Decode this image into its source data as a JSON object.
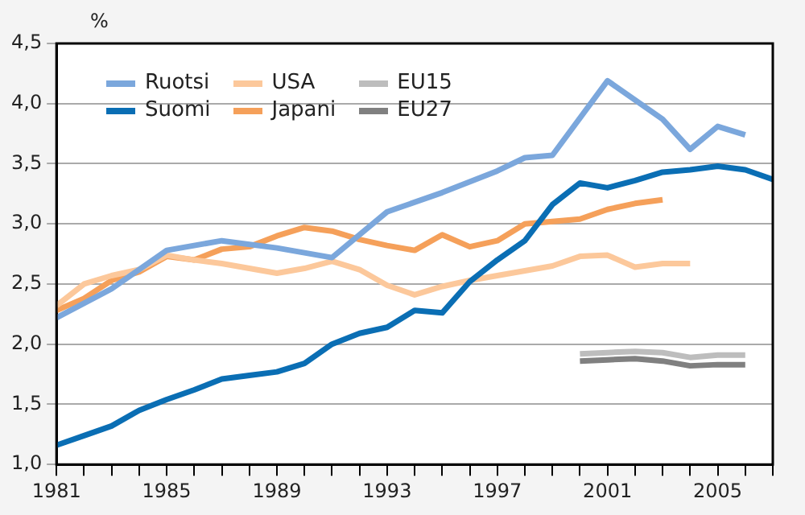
{
  "chart_data": {
    "type": "line",
    "ylabel": "%",
    "xlim": [
      1981,
      2007
    ],
    "xticks": [
      1981,
      {
        "value": 1982,
        "label": null
      },
      {
        "value": 1983,
        "label": null
      },
      {
        "value": 1984,
        "label": null
      },
      1985,
      {
        "value": 1986,
        "label": null
      },
      {
        "value": 1987,
        "label": null
      },
      {
        "value": 1988,
        "label": null
      },
      1989,
      {
        "value": 1990,
        "label": null
      },
      {
        "value": 1991,
        "label": null
      },
      {
        "value": 1992,
        "label": null
      },
      1993,
      {
        "value": 1994,
        "label": null
      },
      {
        "value": 1995,
        "label": null
      },
      {
        "value": 1996,
        "label": null
      },
      1997,
      {
        "value": 1998,
        "label": null
      },
      {
        "value": 1999,
        "label": null
      },
      {
        "value": 2000,
        "label": null
      },
      2001,
      {
        "value": 2002,
        "label": null
      },
      {
        "value": 2003,
        "label": null
      },
      {
        "value": 2004,
        "label": null
      },
      2005,
      {
        "value": 2006,
        "label": null
      },
      {
        "value": 2007,
        "label": null
      }
    ],
    "ylim": [
      1.0,
      4.5
    ],
    "yticks": [
      {
        "value": 1.0,
        "label": "1,0"
      },
      {
        "value": 1.5,
        "label": "1,5"
      },
      {
        "value": 2.0,
        "label": "2,0"
      },
      {
        "value": 2.5,
        "label": "2,5"
      },
      {
        "value": 3.0,
        "label": "3,0"
      },
      {
        "value": 3.5,
        "label": "3,5"
      },
      {
        "value": 4.0,
        "label": "4,0"
      },
      {
        "value": 4.5,
        "label": "4,5"
      }
    ],
    "grid": "y",
    "legend": "top left",
    "marker": "none",
    "line_style": "solid",
    "series": [
      {
        "name": "Ruotsi",
        "color": "#7ba7dc",
        "x": [
          1981,
          1983,
          1985,
          1987,
          1989,
          1991,
          1993,
          1995,
          1997,
          1998,
          1999,
          2001,
          2003,
          2004,
          2005,
          2006
        ],
        "values": [
          2.22,
          2.46,
          2.78,
          2.86,
          2.8,
          2.72,
          3.1,
          3.26,
          3.44,
          3.55,
          3.57,
          4.19,
          3.87,
          3.62,
          3.81,
          3.74
        ]
      },
      {
        "name": "Suomi",
        "color": "#0a6eb4",
        "x": [
          1981,
          1982,
          1983,
          1984,
          1985,
          1986,
          1987,
          1988,
          1989,
          1990,
          1991,
          1992,
          1993,
          1994,
          1995,
          1996,
          1997,
          1998,
          1999,
          2000,
          2001,
          2002,
          2003,
          2004,
          2005,
          2006,
          2007
        ],
        "values": [
          1.16,
          1.24,
          1.32,
          1.45,
          1.54,
          1.62,
          1.71,
          1.74,
          1.77,
          1.84,
          2.0,
          2.09,
          2.14,
          2.28,
          2.26,
          2.52,
          2.7,
          2.86,
          3.16,
          3.34,
          3.3,
          3.36,
          3.43,
          3.45,
          3.48,
          3.45,
          3.37
        ]
      },
      {
        "name": "USA",
        "color": "#fcc89b",
        "x": [
          1981,
          1982,
          1983,
          1984,
          1985,
          1986,
          1987,
          1988,
          1989,
          1990,
          1991,
          1992,
          1993,
          1994,
          1995,
          1996,
          1997,
          1998,
          1999,
          2000,
          2001,
          2002,
          2003,
          2004
        ],
        "values": [
          2.32,
          2.5,
          2.57,
          2.62,
          2.74,
          2.7,
          2.67,
          2.63,
          2.59,
          2.63,
          2.69,
          2.62,
          2.49,
          2.41,
          2.48,
          2.53,
          2.57,
          2.61,
          2.65,
          2.73,
          2.74,
          2.64,
          2.67,
          2.67
        ]
      },
      {
        "name": "Japani",
        "color": "#f5a05a",
        "x": [
          1981,
          1982,
          1983,
          1984,
          1985,
          1986,
          1987,
          1988,
          1989,
          1990,
          1991,
          1992,
          1993,
          1994,
          1995,
          1996,
          1997,
          1998,
          1999,
          2000,
          2001,
          2002,
          2003
        ],
        "values": [
          2.28,
          2.38,
          2.53,
          2.6,
          2.73,
          2.7,
          2.79,
          2.81,
          2.9,
          2.97,
          2.94,
          2.87,
          2.82,
          2.78,
          2.91,
          2.81,
          2.86,
          3.0,
          3.02,
          3.04,
          3.12,
          3.17,
          3.2
        ]
      },
      {
        "name": "EU15",
        "color": "#bdbdbd",
        "x": [
          2000,
          2001,
          2002,
          2003,
          2004,
          2005,
          2006
        ],
        "values": [
          1.92,
          1.93,
          1.94,
          1.93,
          1.89,
          1.91,
          1.91
        ]
      },
      {
        "name": "EU27",
        "color": "#808080",
        "x": [
          2000,
          2001,
          2002,
          2003,
          2004,
          2005,
          2006
        ],
        "values": [
          1.86,
          1.87,
          1.88,
          1.86,
          1.82,
          1.83,
          1.83
        ]
      }
    ]
  }
}
